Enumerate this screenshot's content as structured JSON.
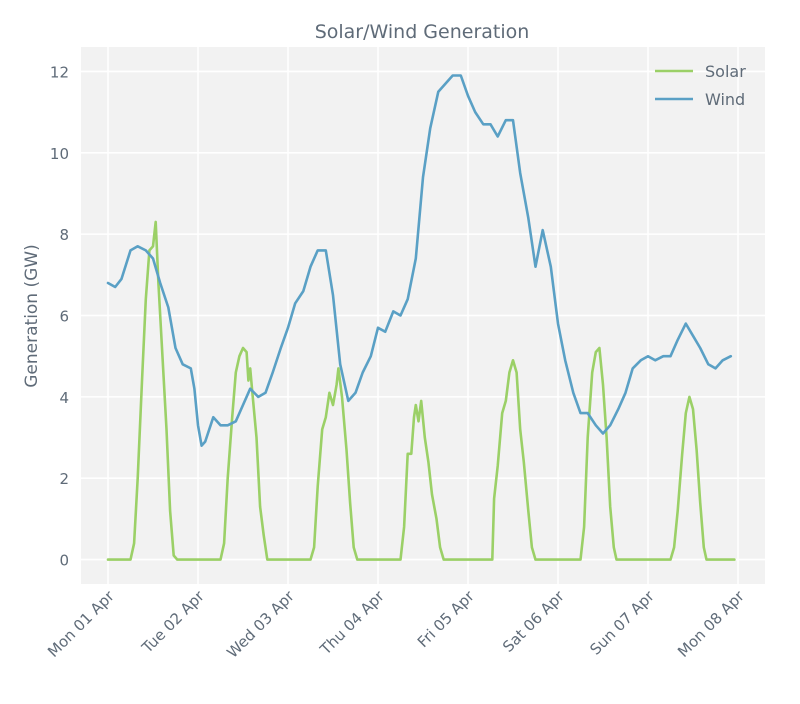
{
  "chart_data": {
    "type": "line",
    "title": "Solar/Wind Generation",
    "xlabel": "",
    "ylabel": "Generation (GW)",
    "ylim": [
      -0.6,
      12.6
    ],
    "yticks": [
      0,
      2,
      4,
      6,
      8,
      10,
      12
    ],
    "xlim": [
      -0.3,
      7.3
    ],
    "x_tick_labels": [
      "Mon 01 Apr",
      "Tue 02 Apr",
      "Wed 03 Apr",
      "Thu 04 Apr",
      "Fri 05 Apr",
      "Sat 06 Apr",
      "Sun 07 Apr",
      "Mon 08 Apr"
    ],
    "x_unit": "days since Mon 01 Apr 00:00",
    "grid": true,
    "legend_position": "top-right",
    "series": [
      {
        "name": "Solar",
        "color": "#9bd067",
        "points": [
          [
            0.0,
            0
          ],
          [
            0.25,
            0
          ],
          [
            0.29,
            0.4
          ],
          [
            0.33,
            2.0
          ],
          [
            0.38,
            4.5
          ],
          [
            0.42,
            6.4
          ],
          [
            0.46,
            7.6
          ],
          [
            0.5,
            7.7
          ],
          [
            0.53,
            8.3
          ],
          [
            0.56,
            6.8
          ],
          [
            0.6,
            5.2
          ],
          [
            0.65,
            3.2
          ],
          [
            0.69,
            1.2
          ],
          [
            0.73,
            0.1
          ],
          [
            0.77,
            0
          ],
          [
            1.25,
            0
          ],
          [
            1.29,
            0.4
          ],
          [
            1.33,
            2.0
          ],
          [
            1.38,
            3.5
          ],
          [
            1.42,
            4.6
          ],
          [
            1.46,
            5.0
          ],
          [
            1.5,
            5.2
          ],
          [
            1.54,
            5.1
          ],
          [
            1.56,
            4.4
          ],
          [
            1.58,
            4.7
          ],
          [
            1.6,
            4.2
          ],
          [
            1.65,
            3.0
          ],
          [
            1.69,
            1.3
          ],
          [
            1.73,
            0.6
          ],
          [
            1.77,
            0
          ],
          [
            2.25,
            0
          ],
          [
            2.29,
            0.3
          ],
          [
            2.33,
            1.8
          ],
          [
            2.38,
            3.2
          ],
          [
            2.42,
            3.5
          ],
          [
            2.46,
            4.1
          ],
          [
            2.5,
            3.8
          ],
          [
            2.54,
            4.3
          ],
          [
            2.56,
            4.7
          ],
          [
            2.6,
            4.0
          ],
          [
            2.65,
            2.7
          ],
          [
            2.69,
            1.4
          ],
          [
            2.73,
            0.3
          ],
          [
            2.77,
            0
          ],
          [
            3.25,
            0
          ],
          [
            3.29,
            0.8
          ],
          [
            3.33,
            2.6
          ],
          [
            3.37,
            2.6
          ],
          [
            3.4,
            3.5
          ],
          [
            3.42,
            3.8
          ],
          [
            3.45,
            3.4
          ],
          [
            3.48,
            3.9
          ],
          [
            3.52,
            3.0
          ],
          [
            3.56,
            2.4
          ],
          [
            3.6,
            1.6
          ],
          [
            3.65,
            1.0
          ],
          [
            3.69,
            0.3
          ],
          [
            3.73,
            0
          ],
          [
            4.27,
            0
          ],
          [
            4.29,
            1.5
          ],
          [
            4.33,
            2.3
          ],
          [
            4.38,
            3.6
          ],
          [
            4.42,
            3.9
          ],
          [
            4.46,
            4.6
          ],
          [
            4.5,
            4.9
          ],
          [
            4.54,
            4.6
          ],
          [
            4.58,
            3.2
          ],
          [
            4.62,
            2.4
          ],
          [
            4.67,
            1.2
          ],
          [
            4.71,
            0.3
          ],
          [
            4.75,
            0
          ],
          [
            5.25,
            0
          ],
          [
            5.29,
            0.8
          ],
          [
            5.33,
            3.0
          ],
          [
            5.38,
            4.6
          ],
          [
            5.42,
            5.1
          ],
          [
            5.46,
            5.2
          ],
          [
            5.5,
            4.3
          ],
          [
            5.54,
            3.0
          ],
          [
            5.58,
            1.3
          ],
          [
            5.62,
            0.3
          ],
          [
            5.65,
            0
          ],
          [
            6.25,
            0
          ],
          [
            6.29,
            0.3
          ],
          [
            6.33,
            1.2
          ],
          [
            6.38,
            2.6
          ],
          [
            6.42,
            3.6
          ],
          [
            6.46,
            4.0
          ],
          [
            6.5,
            3.7
          ],
          [
            6.54,
            2.7
          ],
          [
            6.58,
            1.4
          ],
          [
            6.62,
            0.3
          ],
          [
            6.65,
            0
          ],
          [
            6.96,
            0
          ]
        ]
      },
      {
        "name": "Wind",
        "color": "#5aa0c5",
        "points": [
          [
            0.0,
            6.8
          ],
          [
            0.08,
            6.7
          ],
          [
            0.15,
            6.9
          ],
          [
            0.25,
            7.6
          ],
          [
            0.33,
            7.7
          ],
          [
            0.42,
            7.6
          ],
          [
            0.5,
            7.4
          ],
          [
            0.58,
            6.8
          ],
          [
            0.67,
            6.2
          ],
          [
            0.75,
            5.2
          ],
          [
            0.83,
            4.8
          ],
          [
            0.92,
            4.7
          ],
          [
            0.96,
            4.2
          ],
          [
            1.0,
            3.3
          ],
          [
            1.04,
            2.8
          ],
          [
            1.08,
            2.9
          ],
          [
            1.17,
            3.5
          ],
          [
            1.25,
            3.3
          ],
          [
            1.33,
            3.3
          ],
          [
            1.42,
            3.4
          ],
          [
            1.5,
            3.8
          ],
          [
            1.58,
            4.2
          ],
          [
            1.67,
            4.0
          ],
          [
            1.75,
            4.1
          ],
          [
            1.83,
            4.6
          ],
          [
            1.92,
            5.2
          ],
          [
            2.0,
            5.7
          ],
          [
            2.08,
            6.3
          ],
          [
            2.17,
            6.6
          ],
          [
            2.25,
            7.2
          ],
          [
            2.33,
            7.6
          ],
          [
            2.42,
            7.6
          ],
          [
            2.5,
            6.5
          ],
          [
            2.58,
            4.8
          ],
          [
            2.67,
            3.9
          ],
          [
            2.75,
            4.1
          ],
          [
            2.83,
            4.6
          ],
          [
            2.92,
            5.0
          ],
          [
            3.0,
            5.7
          ],
          [
            3.08,
            5.6
          ],
          [
            3.17,
            6.1
          ],
          [
            3.25,
            6.0
          ],
          [
            3.33,
            6.4
          ],
          [
            3.42,
            7.4
          ],
          [
            3.5,
            9.4
          ],
          [
            3.58,
            10.6
          ],
          [
            3.67,
            11.5
          ],
          [
            3.75,
            11.7
          ],
          [
            3.83,
            11.9
          ],
          [
            3.92,
            11.9
          ],
          [
            4.0,
            11.4
          ],
          [
            4.08,
            11.0
          ],
          [
            4.17,
            10.7
          ],
          [
            4.25,
            10.7
          ],
          [
            4.33,
            10.4
          ],
          [
            4.42,
            10.8
          ],
          [
            4.5,
            10.8
          ],
          [
            4.58,
            9.5
          ],
          [
            4.67,
            8.4
          ],
          [
            4.75,
            7.2
          ],
          [
            4.83,
            8.1
          ],
          [
            4.92,
            7.2
          ],
          [
            5.0,
            5.8
          ],
          [
            5.08,
            4.9
          ],
          [
            5.17,
            4.1
          ],
          [
            5.25,
            3.6
          ],
          [
            5.33,
            3.6
          ],
          [
            5.42,
            3.3
          ],
          [
            5.5,
            3.1
          ],
          [
            5.58,
            3.3
          ],
          [
            5.67,
            3.7
          ],
          [
            5.75,
            4.1
          ],
          [
            5.83,
            4.7
          ],
          [
            5.92,
            4.9
          ],
          [
            6.0,
            5.0
          ],
          [
            6.08,
            4.9
          ],
          [
            6.17,
            5.0
          ],
          [
            6.25,
            5.0
          ],
          [
            6.33,
            5.4
          ],
          [
            6.42,
            5.8
          ],
          [
            6.5,
            5.5
          ],
          [
            6.58,
            5.2
          ],
          [
            6.67,
            4.8
          ],
          [
            6.75,
            4.7
          ],
          [
            6.83,
            4.9
          ],
          [
            6.92,
            5.0
          ]
        ]
      }
    ]
  }
}
